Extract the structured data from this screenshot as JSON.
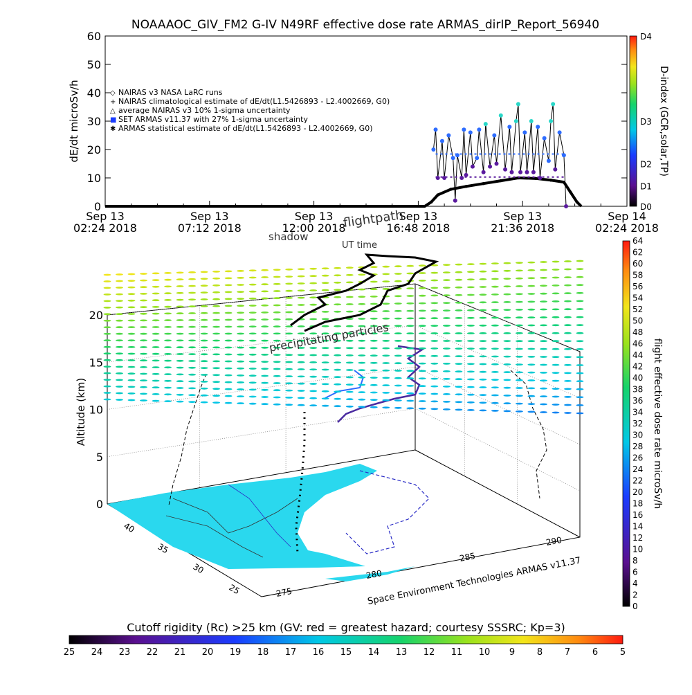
{
  "title": "NOAAAOC_GIV_FM2 G-IV    N49RF   effective dose rate ARMAS_dirIP_Report_56940",
  "chart_data": [
    {
      "type": "line",
      "ylabel": "dE/dt microSv/h",
      "ylim": [
        0,
        60
      ],
      "yticks": [
        "0",
        "10",
        "20",
        "30",
        "40",
        "50",
        "60"
      ],
      "xlim_hours": [
        2.4,
        26.4
      ],
      "xticks": [
        {
          "line1": "Sep 13",
          "line2": "02:24 2018"
        },
        {
          "line1": "Sep 13",
          "line2": "07:12 2018"
        },
        {
          "line1": "Sep 13",
          "line2": "12:00 2018"
        },
        {
          "line1": "Sep 13",
          "line2": "16:48 2018"
        },
        {
          "line1": "Sep 13",
          "line2": "21:36 2018"
        },
        {
          "line1": "Sep 14",
          "line2": "02:24 2018"
        }
      ],
      "legend": [
        "NAIRAS v3 NASA LaRC runs",
        "NAIRAS climatological estimate of dE/dt(L1.5426893 - L2.4002669, G0)",
        "average NAIRAS v3 10% 1-sigma uncertainty",
        "SET ARMAS v11.37 with 27% 1-sigma uncertainty",
        "ARMAS statistical estimate of dE/dt(L1.5426893 - L2.4002669, G0)"
      ],
      "right_axis": {
        "label": "D-index (GCR,solar,TP)",
        "ticks": [
          "D0",
          "D1",
          "D2",
          "D3",
          "D4"
        ]
      },
      "climatology_series": [
        [
          2.4,
          0
        ],
        [
          17.1,
          0
        ],
        [
          17.4,
          1.5
        ],
        [
          17.7,
          4
        ],
        [
          18.3,
          6
        ],
        [
          19.0,
          7
        ],
        [
          19.8,
          8
        ],
        [
          20.6,
          9
        ],
        [
          21.4,
          10
        ],
        [
          22.2,
          9.8
        ],
        [
          22.9,
          9.2
        ],
        [
          23.5,
          8.5
        ],
        [
          23.8,
          5
        ],
        [
          24.1,
          1.5
        ],
        [
          24.3,
          0
        ]
      ],
      "armas_series": [
        [
          17.5,
          20
        ],
        [
          17.6,
          27
        ],
        [
          17.7,
          10
        ],
        [
          17.9,
          23
        ],
        [
          18.0,
          10
        ],
        [
          18.2,
          25
        ],
        [
          18.4,
          17
        ],
        [
          18.5,
          2
        ],
        [
          18.6,
          18
        ],
        [
          18.8,
          10
        ],
        [
          18.9,
          27
        ],
        [
          19.0,
          11
        ],
        [
          19.2,
          26
        ],
        [
          19.3,
          14
        ],
        [
          19.5,
          17
        ],
        [
          19.6,
          27
        ],
        [
          19.8,
          12
        ],
        [
          19.9,
          29
        ],
        [
          20.1,
          14
        ],
        [
          20.3,
          25
        ],
        [
          20.4,
          15
        ],
        [
          20.6,
          32
        ],
        [
          20.8,
          13
        ],
        [
          21.0,
          28
        ],
        [
          21.1,
          12
        ],
        [
          21.3,
          30
        ],
        [
          21.4,
          36
        ],
        [
          21.5,
          12
        ],
        [
          21.7,
          26
        ],
        [
          21.8,
          12
        ],
        [
          22.0,
          30
        ],
        [
          22.1,
          12
        ],
        [
          22.3,
          28
        ],
        [
          22.4,
          10
        ],
        [
          22.6,
          24
        ],
        [
          22.8,
          16
        ],
        [
          22.9,
          30
        ],
        [
          23.0,
          36
        ],
        [
          23.1,
          13
        ],
        [
          23.3,
          26
        ],
        [
          23.5,
          18
        ],
        [
          23.6,
          0
        ]
      ]
    },
    {
      "type": "scatter",
      "ylabel": "Altitude (km)",
      "zlim": [
        0,
        20
      ],
      "zticks": [
        "0",
        "5",
        "10",
        "15",
        "20"
      ],
      "lat_ticks": [
        "40",
        "35",
        "30",
        "25"
      ],
      "lon_ticks": [
        "275",
        "280",
        "285",
        "290"
      ],
      "annotations": {
        "shadow": "shadow",
        "flightpath": "flightpath",
        "ut_time": "UT time",
        "precip": "precipitating particles",
        "credit": "Space Environment Technologies ARMAS v11.37"
      },
      "colorbar_right": {
        "label": "flight effective dose rate microSv/h",
        "ticks": [
          "0",
          "2",
          "4",
          "6",
          "8",
          "10",
          "12",
          "14",
          "16",
          "18",
          "20",
          "22",
          "24",
          "26",
          "28",
          "30",
          "32",
          "34",
          "36",
          "38",
          "40",
          "42",
          "44",
          "46",
          "48",
          "50",
          "52",
          "54",
          "56",
          "58",
          "60",
          "62",
          "64"
        ]
      }
    }
  ],
  "bottom_colorbar": {
    "caption": "Cutoff rigidity (Rc) >25 km (GV: red = greatest hazard; courtesy SSSRC; Kp=3)",
    "ticks": [
      "25",
      "24",
      "23",
      "22",
      "21",
      "20",
      "19",
      "18",
      "17",
      "16",
      "15",
      "14",
      "13",
      "12",
      "11",
      "10",
      "9",
      "8",
      "7",
      "6",
      "5"
    ]
  }
}
